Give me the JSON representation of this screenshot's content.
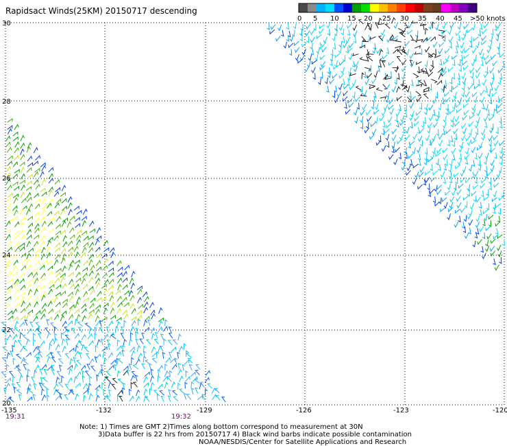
{
  "title": "Rapidsact Winds(25KM) 20150717 descending",
  "legend": {
    "colors": [
      "#4a4a4a",
      "#8a8a8a",
      "#00b4ff",
      "#00e0ff",
      "#0050ff",
      "#0000d0",
      "#00a000",
      "#00e000",
      "#ffff00",
      "#ffc000",
      "#ff8000",
      "#ff4000",
      "#ff0000",
      "#c00000",
      "#804020",
      "#604020",
      "#ff00ff",
      "#c000c0",
      "#8000c0",
      "#400080"
    ],
    "labels": [
      "0",
      "5",
      "10",
      "15",
      "20",
      "25",
      "30",
      "35",
      "40",
      "45",
      ">50 knots"
    ]
  },
  "axes": {
    "lon_labels": [
      "-135",
      "-132",
      "-129",
      "-126",
      "-123",
      "-120"
    ],
    "lat_labels": [
      "30",
      "28",
      "26",
      "24",
      "22",
      "20"
    ]
  },
  "times": [
    "19:31",
    "19:32"
  ],
  "notes": [
    "Note: 1) Times are GMT 2)Times along bottom correspond to measurement at 30N",
    "3)Data buffer is 22 hrs from 20150717 4) Black wind barbs indicate possible contamination",
    "NOAA/NESDIS/Center for Satellite Applications and Research"
  ]
}
